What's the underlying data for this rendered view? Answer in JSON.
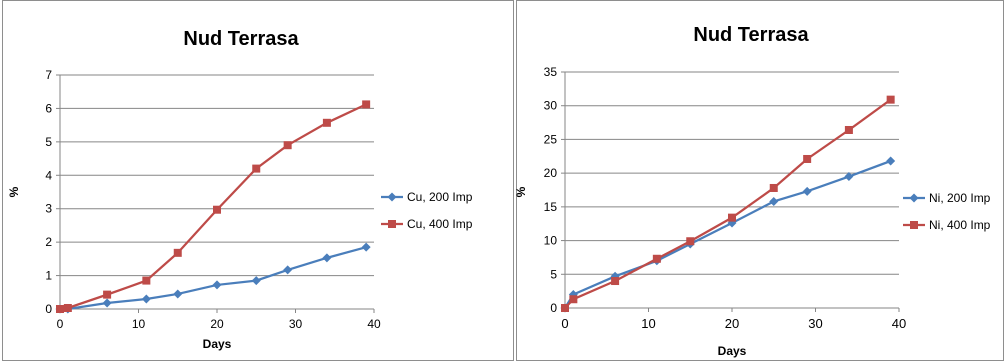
{
  "chart_data": [
    {
      "type": "line",
      "title": "Nud Terrasa",
      "xlabel": "Days",
      "ylabel": "%",
      "xlim": [
        0,
        40
      ],
      "ylim": [
        0,
        7
      ],
      "xticks": [
        "0",
        "10",
        "20",
        "30",
        "40"
      ],
      "yticks": [
        "0",
        "1",
        "2",
        "3",
        "4",
        "5",
        "6",
        "7"
      ],
      "grid": "horizontal",
      "legend_position": "right",
      "series": [
        {
          "name": "Cu, 200 Imp",
          "color": "#4a7ebb",
          "marker": "diamond",
          "x": [
            0,
            1,
            6,
            11,
            15,
            20,
            25,
            29,
            34,
            39
          ],
          "y": [
            0,
            0,
            0.18,
            0.3,
            0.45,
            0.72,
            0.85,
            1.17,
            1.53,
            1.85
          ]
        },
        {
          "name": "Cu, 400 Imp",
          "color": "#be4b48",
          "marker": "square",
          "x": [
            0,
            1,
            6,
            11,
            15,
            20,
            25,
            29,
            34,
            39
          ],
          "y": [
            0,
            0.03,
            0.43,
            0.85,
            1.68,
            2.97,
            4.2,
            4.9,
            5.57,
            6.12
          ]
        }
      ]
    },
    {
      "type": "line",
      "title": "Nud Terrasa",
      "xlabel": "Days",
      "ylabel": "%",
      "xlim": [
        0,
        40
      ],
      "ylim": [
        0,
        35
      ],
      "xticks": [
        "0",
        "10",
        "20",
        "30",
        "40"
      ],
      "yticks": [
        "0",
        "5",
        "10",
        "15",
        "20",
        "25",
        "30",
        "35"
      ],
      "grid": "horizontal",
      "legend_position": "right",
      "series": [
        {
          "name": "Ni, 200 Imp",
          "color": "#4a7ebb",
          "marker": "diamond",
          "x": [
            0,
            1,
            6,
            11,
            15,
            20,
            25,
            29,
            34,
            39
          ],
          "y": [
            0,
            2.0,
            4.7,
            7.0,
            9.5,
            12.6,
            15.8,
            17.3,
            19.5,
            21.8
          ]
        },
        {
          "name": "Ni, 400 Imp",
          "color": "#be4b48",
          "marker": "square",
          "x": [
            0,
            1,
            6,
            11,
            15,
            20,
            25,
            29,
            34,
            39
          ],
          "y": [
            0,
            1.3,
            4.0,
            7.3,
            9.9,
            13.4,
            17.8,
            22.1,
            26.4,
            30.9
          ]
        }
      ]
    }
  ]
}
